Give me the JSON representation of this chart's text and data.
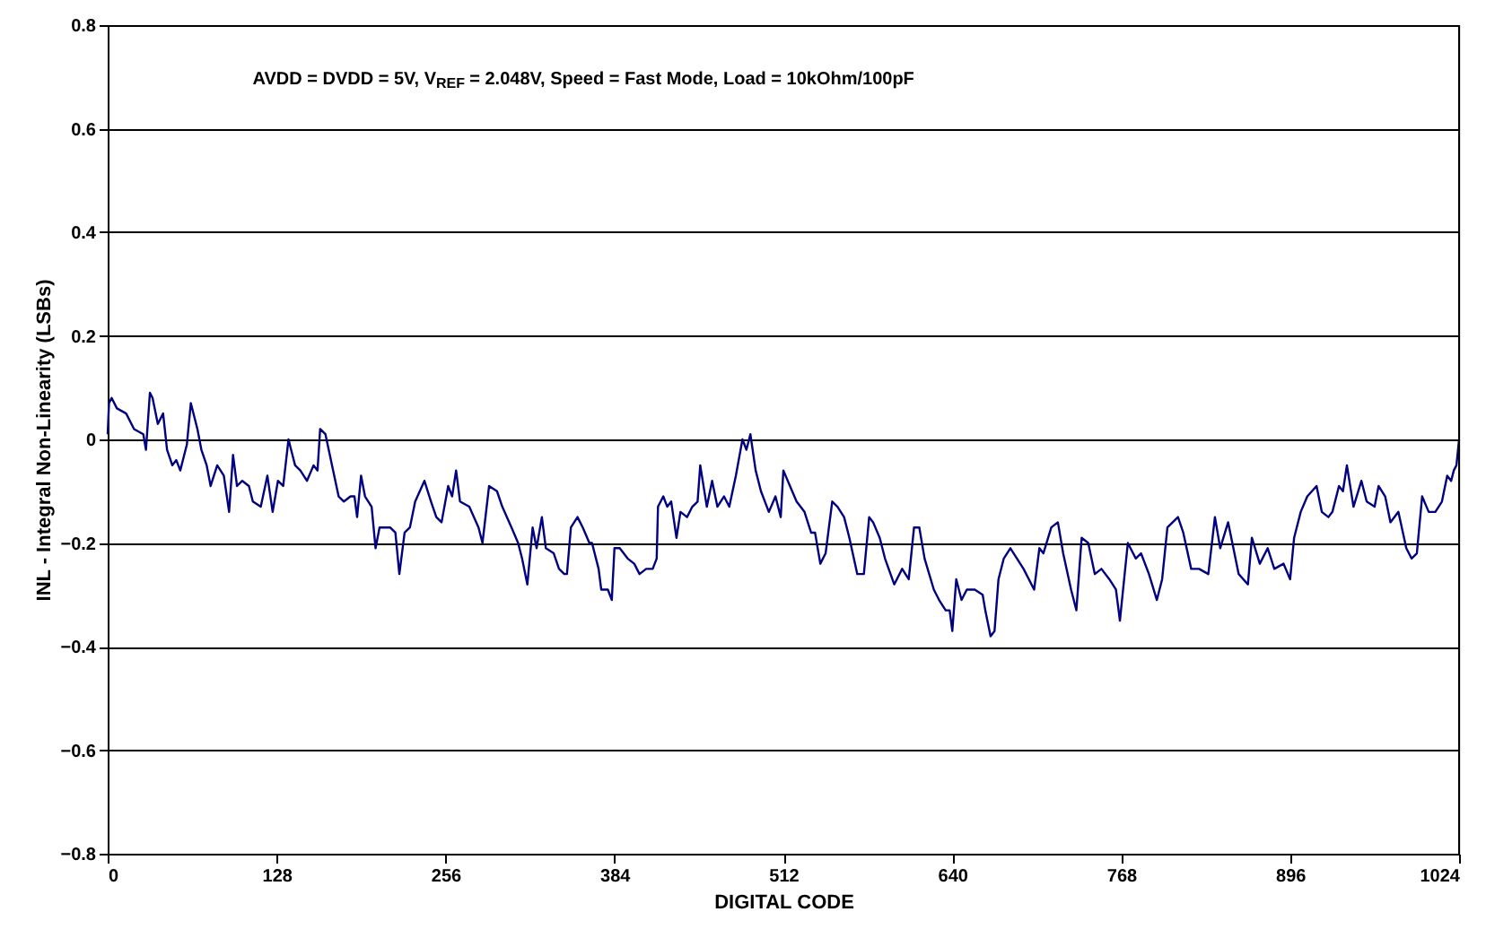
{
  "chart_data": {
    "type": "line",
    "xlabel": "DIGITAL CODE",
    "ylabel": "INL - Integral Non-Linearity (LSBs)",
    "annotations": [
      "AVDD = DVDD = 5V, V$_{REF}$ = 2.048V, Speed = Fast Mode, Load = 10kOhm/100pF"
    ],
    "xlim": [
      0,
      1024
    ],
    "xticks": [
      0,
      128,
      256,
      384,
      512,
      640,
      768,
      896,
      1024
    ],
    "ylim": [
      -0.8,
      0.8
    ],
    "yticks": [
      -0.8,
      -0.6,
      -0.4,
      -0.2,
      0,
      0.2,
      0.4,
      0.6,
      0.8
    ],
    "grid": "y",
    "marker": "none",
    "line_style": "solid",
    "x": [
      0,
      1,
      3,
      7,
      14,
      20,
      27,
      29,
      32,
      34,
      38,
      42,
      45,
      49,
      52,
      55,
      60,
      63,
      68,
      71,
      75,
      78,
      83,
      88,
      92,
      95,
      98,
      102,
      107,
      110,
      116,
      121,
      125,
      129,
      133,
      137,
      142,
      146,
      151,
      156,
      159,
      161,
      165,
      170,
      175,
      179,
      184,
      187,
      189,
      192,
      195,
      200,
      203,
      206,
      214,
      218,
      221,
      225,
      229,
      233,
      240,
      245,
      249,
      253,
      258,
      261,
      264,
      267,
      274,
      281,
      284,
      289,
      295,
      299,
      306,
      311,
      314,
      318,
      322,
      325,
      329,
      332,
      338,
      342,
      346,
      348,
      351,
      356,
      360,
      365,
      367,
      372,
      374,
      379,
      382,
      384,
      388,
      394,
      399,
      403,
      408,
      413,
      416,
      417,
      421,
      424,
      427,
      431,
      434,
      439,
      443,
      447,
      449,
      454,
      458,
      462,
      467,
      471,
      476,
      481,
      484,
      487,
      491,
      495,
      501,
      506,
      510,
      512,
      517,
      522,
      528,
      533,
      536,
      540,
      544,
      549,
      553,
      558,
      562,
      568,
      573,
      577,
      580,
      585,
      589,
      596,
      602,
      607,
      611,
      615,
      619,
      626,
      630,
      635,
      638,
      640,
      643,
      647,
      651,
      657,
      663,
      665,
      669,
      672,
      675,
      679,
      684,
      689,
      694,
      702,
      706,
      709,
      715,
      720,
      724,
      730,
      734,
      738,
      743,
      748,
      753,
      759,
      764,
      767,
      773,
      779,
      783,
      789,
      795,
      799,
      803,
      811,
      815,
      821,
      827,
      834,
      839,
      843,
      849,
      857,
      864,
      867,
      873,
      879,
      884,
      891,
      896,
      899,
      904,
      909,
      916,
      920,
      925,
      928,
      933,
      936,
      939,
      944,
      950,
      954,
      960,
      963,
      968,
      972,
      978,
      984,
      988,
      992,
      996,
      1001,
      1006,
      1011,
      1015,
      1018,
      1020,
      1022,
      1024
    ],
    "series": [
      {
        "color": "#000080",
        "values": [
          0.01,
          0.07,
          0.08,
          0.06,
          0.05,
          0.02,
          0.01,
          -0.02,
          0.09,
          0.08,
          0.03,
          0.05,
          -0.02,
          -0.05,
          -0.04,
          -0.06,
          -0.01,
          0.07,
          0.02,
          -0.02,
          -0.05,
          -0.09,
          -0.05,
          -0.07,
          -0.14,
          -0.03,
          -0.09,
          -0.08,
          -0.09,
          -0.12,
          -0.13,
          -0.07,
          -0.14,
          -0.08,
          -0.09,
          0.0,
          -0.05,
          -0.06,
          -0.08,
          -0.05,
          -0.06,
          0.02,
          0.01,
          -0.05,
          -0.11,
          -0.12,
          -0.11,
          -0.11,
          -0.15,
          -0.07,
          -0.11,
          -0.13,
          -0.21,
          -0.17,
          -0.17,
          -0.18,
          -0.26,
          -0.18,
          -0.17,
          -0.12,
          -0.08,
          -0.12,
          -0.15,
          -0.16,
          -0.09,
          -0.11,
          -0.06,
          -0.12,
          -0.13,
          -0.17,
          -0.2,
          -0.09,
          -0.1,
          -0.13,
          -0.17,
          -0.2,
          -0.23,
          -0.28,
          -0.17,
          -0.21,
          -0.15,
          -0.21,
          -0.22,
          -0.25,
          -0.26,
          -0.26,
          -0.17,
          -0.15,
          -0.17,
          -0.2,
          -0.2,
          -0.25,
          -0.29,
          -0.29,
          -0.31,
          -0.21,
          -0.21,
          -0.23,
          -0.24,
          -0.26,
          -0.25,
          -0.25,
          -0.23,
          -0.13,
          -0.11,
          -0.13,
          -0.12,
          -0.19,
          -0.14,
          -0.15,
          -0.13,
          -0.12,
          -0.05,
          -0.13,
          -0.08,
          -0.13,
          -0.11,
          -0.13,
          -0.07,
          0.0,
          -0.02,
          0.01,
          -0.06,
          -0.1,
          -0.14,
          -0.11,
          -0.15,
          -0.06,
          -0.09,
          -0.12,
          -0.14,
          -0.18,
          -0.18,
          -0.24,
          -0.22,
          -0.12,
          -0.13,
          -0.15,
          -0.19,
          -0.26,
          -0.26,
          -0.15,
          -0.16,
          -0.19,
          -0.23,
          -0.28,
          -0.25,
          -0.27,
          -0.17,
          -0.17,
          -0.23,
          -0.29,
          -0.31,
          -0.33,
          -0.33,
          -0.37,
          -0.27,
          -0.31,
          -0.29,
          -0.29,
          -0.3,
          -0.33,
          -0.38,
          -0.37,
          -0.27,
          -0.23,
          -0.21,
          -0.23,
          -0.25,
          -0.29,
          -0.21,
          -0.22,
          -0.17,
          -0.16,
          -0.22,
          -0.29,
          -0.33,
          -0.19,
          -0.2,
          -0.26,
          -0.25,
          -0.27,
          -0.29,
          -0.35,
          -0.2,
          -0.23,
          -0.22,
          -0.26,
          -0.31,
          -0.27,
          -0.17,
          -0.15,
          -0.18,
          -0.25,
          -0.25,
          -0.26,
          -0.15,
          -0.21,
          -0.16,
          -0.26,
          -0.28,
          -0.19,
          -0.24,
          -0.21,
          -0.25,
          -0.24,
          -0.27,
          -0.19,
          -0.14,
          -0.11,
          -0.09,
          -0.14,
          -0.15,
          -0.14,
          -0.09,
          -0.1,
          -0.05,
          -0.13,
          -0.08,
          -0.12,
          -0.13,
          -0.09,
          -0.11,
          -0.16,
          -0.14,
          -0.21,
          -0.23,
          -0.22,
          -0.11,
          -0.14,
          -0.14,
          -0.12,
          -0.07,
          -0.08,
          -0.06,
          -0.05,
          0.0
        ]
      }
    ]
  }
}
